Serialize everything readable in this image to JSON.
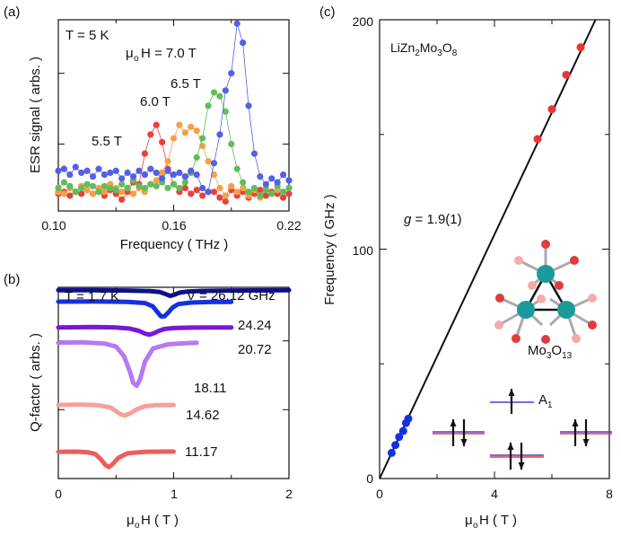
{
  "colors": {
    "red": "#e8413c",
    "orange": "#f4a04a",
    "green": "#5fbe5a",
    "blue": "#5560e6",
    "navy": "#10108a",
    "bright_blue": "#1530e0",
    "purple": "#7a16d6",
    "lavender": "#b679f0",
    "pink": "#f6a09c",
    "salmon": "#ee5d5d",
    "teal": "#1a9a9a",
    "dark_red": "#e03c3c",
    "light_red": "#f6aaaa",
    "gray": "#aaaaaa",
    "level_blue": "#4040e0",
    "level_red": "#ee3333"
  },
  "chart_data": [
    {
      "panel": "(a)",
      "type": "line",
      "title": "",
      "xlabel": "Frequency ( THz )",
      "ylabel": "ESR signal ( arbs. )",
      "xlim": [
        0.1,
        0.22
      ],
      "ylim": [
        0,
        1
      ],
      "xticks": [
        "0.10",
        "0.16",
        "0.22"
      ],
      "ytick_values": [
        0.35,
        0.72
      ],
      "label_temperature": "T = 5 K",
      "labels": [
        "μ",
        "o",
        "H = 7.0 T",
        "6.5 T",
        "6.0 T",
        "5.5 T"
      ],
      "series": [
        {
          "name": "5.5 T",
          "color_key": "red",
          "x": [
            0.1,
            0.103,
            0.106,
            0.109,
            0.112,
            0.115,
            0.118,
            0.121,
            0.124,
            0.127,
            0.13,
            0.133,
            0.136,
            0.139,
            0.142,
            0.145,
            0.148,
            0.151,
            0.154,
            0.157,
            0.16,
            0.163,
            0.166,
            0.169,
            0.172,
            0.175,
            0.178,
            0.181,
            0.184,
            0.187,
            0.19,
            0.193,
            0.196,
            0.199,
            0.202,
            0.205,
            0.208,
            0.211,
            0.214,
            0.217,
            0.22
          ],
          "y": [
            0.09,
            0.1,
            0.08,
            0.1,
            0.09,
            0.11,
            0.09,
            0.1,
            0.08,
            0.11,
            0.09,
            0.06,
            0.1,
            0.15,
            0.14,
            0.3,
            0.4,
            0.45,
            0.36,
            0.22,
            0.14,
            0.1,
            0.12,
            0.09,
            0.11,
            0.08,
            0.1,
            0.1,
            0.07,
            0.05,
            0.11,
            0.08,
            0.1,
            0.07,
            0.09,
            0.11,
            0.08,
            0.1,
            0.09,
            0.07,
            0.09
          ]
        },
        {
          "name": "6.0 T",
          "color_key": "orange",
          "x": [
            0.1,
            0.103,
            0.106,
            0.109,
            0.112,
            0.115,
            0.118,
            0.121,
            0.124,
            0.127,
            0.13,
            0.133,
            0.136,
            0.139,
            0.142,
            0.145,
            0.148,
            0.151,
            0.154,
            0.157,
            0.16,
            0.163,
            0.166,
            0.169,
            0.172,
            0.175,
            0.178,
            0.181,
            0.184,
            0.187,
            0.19,
            0.193,
            0.196,
            0.199,
            0.202,
            0.205,
            0.208,
            0.211,
            0.214,
            0.217,
            0.22
          ],
          "y": [
            0.1,
            0.09,
            0.12,
            0.1,
            0.13,
            0.11,
            0.09,
            0.12,
            0.1,
            0.14,
            0.12,
            0.1,
            0.12,
            0.09,
            0.12,
            0.1,
            0.14,
            0.16,
            0.2,
            0.26,
            0.38,
            0.45,
            0.41,
            0.44,
            0.42,
            0.34,
            0.26,
            0.19,
            0.12,
            0.08,
            0.13,
            0.1,
            0.12,
            0.08,
            0.11,
            0.07,
            0.12,
            0.09,
            0.11,
            0.1,
            0.12
          ]
        },
        {
          "name": "6.5 T",
          "color_key": "green",
          "x": [
            0.1,
            0.103,
            0.106,
            0.109,
            0.112,
            0.115,
            0.118,
            0.121,
            0.124,
            0.127,
            0.13,
            0.133,
            0.136,
            0.139,
            0.142,
            0.145,
            0.148,
            0.151,
            0.154,
            0.157,
            0.16,
            0.163,
            0.166,
            0.169,
            0.172,
            0.175,
            0.178,
            0.181,
            0.184,
            0.187,
            0.19,
            0.193,
            0.196,
            0.199,
            0.202,
            0.205,
            0.208,
            0.211,
            0.214,
            0.217,
            0.22
          ],
          "y": [
            0.12,
            0.15,
            0.13,
            0.1,
            0.12,
            0.14,
            0.13,
            0.1,
            0.13,
            0.12,
            0.11,
            0.14,
            0.12,
            0.16,
            0.13,
            0.12,
            0.14,
            0.13,
            0.15,
            0.12,
            0.14,
            0.12,
            0.15,
            0.2,
            0.28,
            0.38,
            0.55,
            0.62,
            0.6,
            0.52,
            0.35,
            0.22,
            0.15,
            0.1,
            0.12,
            0.08,
            0.11,
            0.09,
            0.13,
            0.1,
            0.12
          ]
        },
        {
          "name": "7.0 T",
          "color_key": "blue",
          "x": [
            0.1,
            0.103,
            0.106,
            0.109,
            0.112,
            0.115,
            0.118,
            0.121,
            0.124,
            0.127,
            0.13,
            0.133,
            0.136,
            0.139,
            0.142,
            0.145,
            0.148,
            0.151,
            0.154,
            0.157,
            0.16,
            0.163,
            0.166,
            0.169,
            0.172,
            0.175,
            0.178,
            0.181,
            0.184,
            0.187,
            0.19,
            0.193,
            0.196,
            0.199,
            0.202,
            0.205,
            0.208,
            0.211,
            0.214,
            0.217,
            0.22
          ],
          "y": [
            0.21,
            0.22,
            0.19,
            0.23,
            0.2,
            0.21,
            0.18,
            0.22,
            0.19,
            0.2,
            0.21,
            0.17,
            0.2,
            0.18,
            0.21,
            0.19,
            0.22,
            0.2,
            0.17,
            0.21,
            0.19,
            0.2,
            0.18,
            0.21,
            0.19,
            0.12,
            0.1,
            0.25,
            0.4,
            0.63,
            0.72,
            0.98,
            0.88,
            0.55,
            0.3,
            0.18,
            0.14,
            0.17,
            0.15,
            0.19,
            0.16
          ]
        }
      ]
    },
    {
      "panel": "(b)",
      "type": "line",
      "title": "",
      "xlabel": "μoH ( T )",
      "ylabel": "Q-factor ( arbs. )",
      "xlim": [
        0,
        2
      ],
      "xticks": [
        "0",
        "1",
        "2"
      ],
      "ytick_values": [
        0.36,
        0.72
      ],
      "label_temperature": "T = 1.7 K",
      "nu_symbol": "ν",
      "series": [
        {
          "name": "26.12 GHz",
          "label": "= 26.12 GHz",
          "color_key": "navy",
          "x": [
            0,
            0.3,
            0.6,
            0.8,
            0.88,
            0.93,
            0.97,
            1.01,
            1.05,
            1.12,
            1.25,
            1.5,
            1.8,
            2.0
          ],
          "y": [
            0.985,
            0.985,
            0.983,
            0.98,
            0.975,
            0.965,
            0.955,
            0.962,
            0.972,
            0.978,
            0.981,
            0.983,
            0.984,
            0.985
          ]
        },
        {
          "name": "24.24",
          "color_key": "bright_blue",
          "x": [
            0,
            0.3,
            0.6,
            0.75,
            0.82,
            0.86,
            0.89,
            0.92,
            0.95,
            0.99,
            1.04,
            1.15,
            1.3,
            1.5
          ],
          "y": [
            0.925,
            0.926,
            0.924,
            0.918,
            0.9,
            0.87,
            0.848,
            0.848,
            0.866,
            0.894,
            0.912,
            0.92,
            0.923,
            0.924
          ]
        },
        {
          "name": "20.72",
          "color_key": "purple",
          "x": [
            0,
            0.3,
            0.5,
            0.62,
            0.7,
            0.75,
            0.79,
            0.83,
            0.87,
            0.92,
            1.0,
            1.15,
            1.3,
            1.5
          ],
          "y": [
            0.79,
            0.792,
            0.79,
            0.784,
            0.772,
            0.758,
            0.752,
            0.76,
            0.772,
            0.782,
            0.787,
            0.789,
            0.79,
            0.79
          ]
        },
        {
          "name": "18.11",
          "color_key": "lavender",
          "x": [
            0,
            0.2,
            0.4,
            0.5,
            0.57,
            0.62,
            0.65,
            0.68,
            0.71,
            0.75,
            0.82,
            0.95,
            1.1,
            1.2
          ],
          "y": [
            0.71,
            0.712,
            0.706,
            0.69,
            0.64,
            0.56,
            0.5,
            0.485,
            0.52,
            0.61,
            0.68,
            0.702,
            0.708,
            0.71
          ]
        },
        {
          "name": "14.62",
          "color_key": "pink",
          "x": [
            0,
            0.2,
            0.35,
            0.45,
            0.5,
            0.54,
            0.58,
            0.62,
            0.68,
            0.75,
            0.85,
            1.0
          ],
          "y": [
            0.385,
            0.387,
            0.383,
            0.372,
            0.352,
            0.335,
            0.33,
            0.34,
            0.362,
            0.378,
            0.384,
            0.385
          ]
        },
        {
          "name": "11.17",
          "color_key": "salmon",
          "x": [
            0,
            0.15,
            0.25,
            0.32,
            0.37,
            0.41,
            0.44,
            0.47,
            0.52,
            0.6,
            0.75,
            0.9,
            1.0
          ],
          "y": [
            0.14,
            0.141,
            0.138,
            0.128,
            0.1,
            0.07,
            0.06,
            0.075,
            0.108,
            0.132,
            0.14,
            0.141,
            0.141
          ]
        }
      ]
    },
    {
      "panel": "(c)",
      "type": "scatter",
      "title": "",
      "xlabel": "μoH ( T )",
      "ylabel": "Frequency ( GHz )",
      "xlim": [
        0,
        8
      ],
      "ylim": [
        0,
        200
      ],
      "xticks": [
        "0",
        "4",
        "8"
      ],
      "yticks": [
        "0",
        "100",
        "200"
      ],
      "fit_line": {
        "label": "g = 1.9(1)",
        "slope_ghz_per_t": 26.6
      },
      "labels": {
        "compound": "LiZn2Mo3O8",
        "cluster": "Mo3O13",
        "level": "A1"
      },
      "series": [
        {
          "name": "blue points",
          "color_key": "bright_blue",
          "x": [
            0.42,
            0.55,
            0.68,
            0.82,
            0.92,
            1.0
          ],
          "y": [
            11.2,
            14.6,
            18.1,
            20.7,
            24.2,
            26.1
          ]
        },
        {
          "name": "red points",
          "color_key": "level_red",
          "x": [
            5.5,
            6.0,
            6.5,
            7.0
          ],
          "y": [
            148,
            161,
            176,
            188
          ]
        }
      ]
    }
  ]
}
